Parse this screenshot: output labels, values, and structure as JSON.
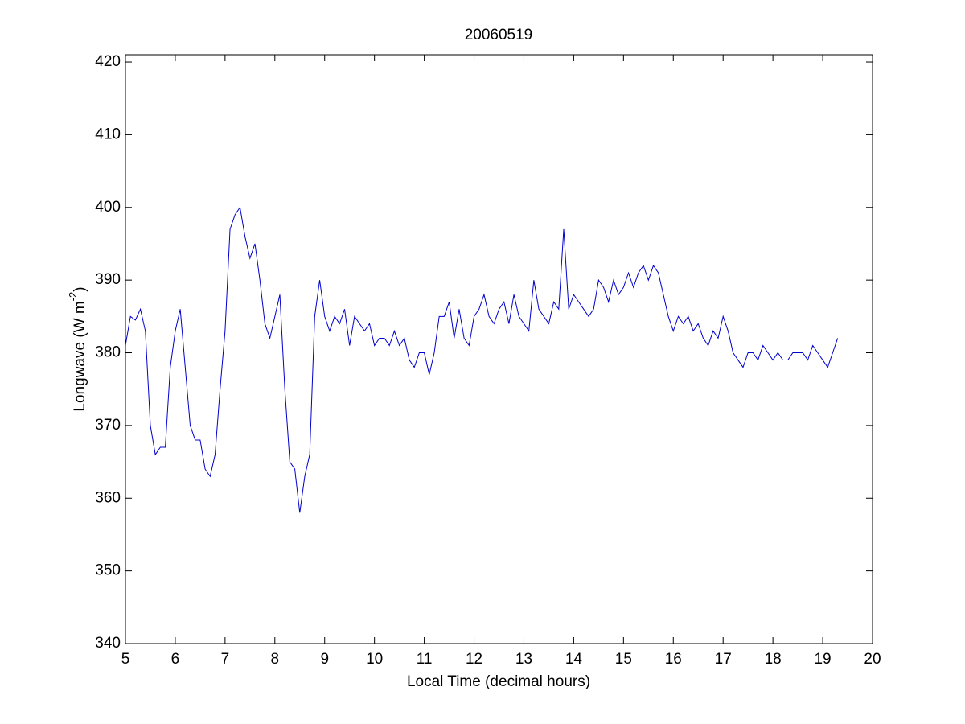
{
  "chart_data": {
    "type": "line",
    "title": "20060519",
    "x_label": "Local Time (decimal hours)",
    "y_label": {
      "text": "Longwave (W m",
      "superscript": "-2",
      "suffix": ")"
    },
    "xlim": [
      5,
      20
    ],
    "ylim": [
      340,
      421
    ],
    "xticks": [
      5,
      6,
      7,
      8,
      9,
      10,
      11,
      12,
      13,
      14,
      15,
      16,
      17,
      18,
      19,
      20
    ],
    "yticks": [
      340,
      350,
      360,
      370,
      380,
      390,
      400,
      410,
      420
    ],
    "grid": false,
    "x": [
      5.0,
      5.1,
      5.2,
      5.3,
      5.4,
      5.5,
      5.6,
      5.7,
      5.8,
      5.9,
      6.0,
      6.1,
      6.2,
      6.3,
      6.4,
      6.5,
      6.6,
      6.7,
      6.8,
      6.9,
      7.0,
      7.1,
      7.2,
      7.3,
      7.4,
      7.5,
      7.6,
      7.7,
      7.8,
      7.9,
      8.0,
      8.1,
      8.2,
      8.3,
      8.4,
      8.5,
      8.6,
      8.7,
      8.8,
      8.9,
      9.0,
      9.1,
      9.2,
      9.3,
      9.4,
      9.5,
      9.6,
      9.7,
      9.8,
      9.9,
      10.0,
      10.1,
      10.2,
      10.3,
      10.4,
      10.5,
      10.6,
      10.7,
      10.8,
      10.9,
      11.0,
      11.1,
      11.2,
      11.3,
      11.4,
      11.5,
      11.6,
      11.7,
      11.8,
      11.9,
      12.0,
      12.1,
      12.2,
      12.3,
      12.4,
      12.5,
      12.6,
      12.7,
      12.8,
      12.9,
      13.0,
      13.1,
      13.2,
      13.3,
      13.4,
      13.5,
      13.6,
      13.7,
      13.8,
      13.9,
      14.0,
      14.1,
      14.2,
      14.3,
      14.4,
      14.5,
      14.6,
      14.7,
      14.8,
      14.9,
      15.0,
      15.1,
      15.2,
      15.3,
      15.4,
      15.5,
      15.6,
      15.7,
      15.8,
      15.9,
      16.0,
      16.1,
      16.2,
      16.3,
      16.4,
      16.5,
      16.6,
      16.7,
      16.8,
      16.9,
      17.0,
      17.1,
      17.2,
      17.3,
      17.4,
      17.5,
      17.6,
      17.7,
      17.8,
      17.9,
      18.0,
      18.1,
      18.2,
      18.3,
      18.4,
      18.5,
      18.6,
      18.7,
      18.8,
      18.9,
      19.0,
      19.1,
      19.2,
      19.3
    ],
    "series": [
      {
        "color": "#0000cc",
        "values": [
          381,
          385,
          384.5,
          386,
          383,
          370,
          366,
          367,
          367,
          378,
          383,
          386,
          378,
          370,
          368,
          368,
          364,
          363,
          366,
          375,
          383,
          397,
          399,
          400,
          396,
          393,
          395,
          390,
          384,
          382,
          385,
          388,
          375,
          365,
          364,
          358,
          363,
          366,
          385,
          390,
          385,
          383,
          385,
          384,
          386,
          381,
          385,
          384,
          383,
          384,
          381,
          382,
          382,
          381,
          383,
          381,
          382,
          379,
          378,
          380,
          380,
          377,
          380,
          385,
          385,
          387,
          382,
          386,
          382,
          381,
          385,
          386,
          388,
          385,
          384,
          386,
          387,
          384,
          388,
          385,
          384,
          383,
          390,
          386,
          385,
          384,
          387,
          386,
          397,
          386,
          388,
          387,
          386,
          385,
          386,
          390,
          389,
          387,
          390,
          388,
          389,
          391,
          389,
          391,
          392,
          390,
          392,
          391,
          388,
          385,
          383,
          385,
          384,
          385,
          383,
          384,
          382,
          381,
          383,
          382,
          385,
          383,
          380,
          379,
          378,
          380,
          380,
          379,
          381,
          380,
          379,
          380,
          379,
          379,
          380,
          380,
          380,
          379,
          381,
          380,
          379,
          378,
          380,
          382
        ]
      }
    ]
  }
}
